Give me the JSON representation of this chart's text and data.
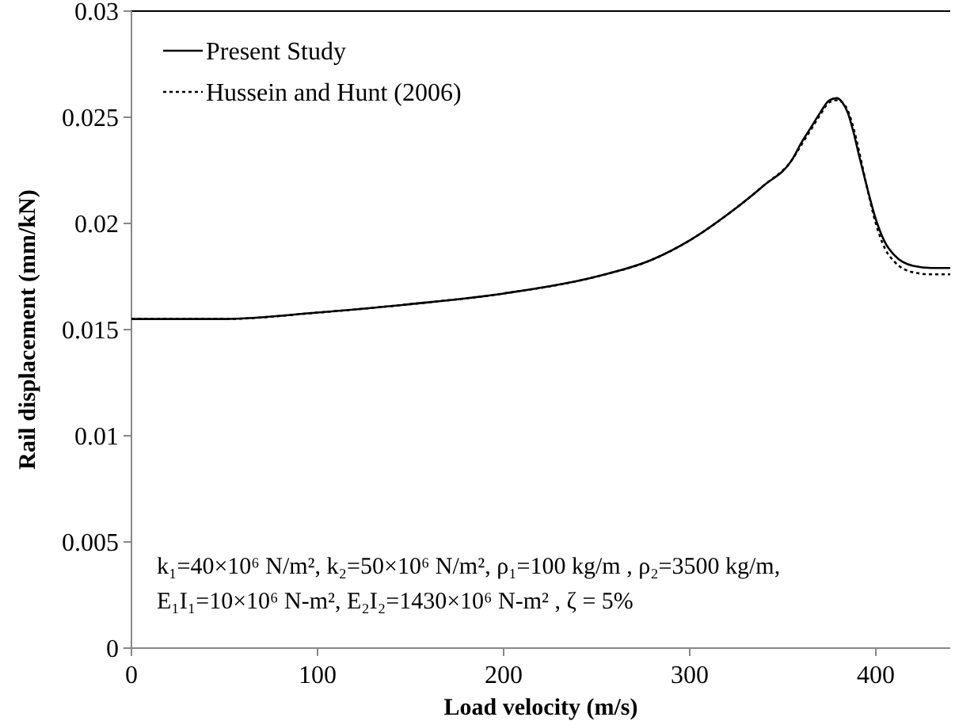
{
  "chart_data": {
    "type": "line",
    "xlabel": "Load velocity (m/s)",
    "ylabel": "Rail displacement (mm/kN)",
    "xlim": [
      0,
      440
    ],
    "ylim": [
      0,
      0.03
    ],
    "xticks": [
      0,
      100,
      200,
      300,
      400
    ],
    "yticks": [
      0,
      0.005,
      0.01,
      0.015,
      0.02,
      0.025,
      0.03
    ],
    "legend": "top left",
    "grid": false,
    "annotations": [
      "k₁=40×10⁶ N/m², k₂=50×10⁶ N/m², ρ₁=100 kg/m , ρ₂=3500 kg/m,",
      "E₁I₁=10×10⁶ N-m², E₂I₂=1430×10⁶ N-m² , ζ = 5%"
    ],
    "series": [
      {
        "name": "Present Study",
        "color": "#000000",
        "line_style": "solid",
        "x": [
          0,
          50,
          100,
          150,
          200,
          250,
          280,
          300,
          320,
          340,
          355,
          360,
          365,
          370,
          375,
          379,
          382,
          385,
          388,
          391,
          395,
          400,
          405,
          410,
          420,
          430,
          440
        ],
        "values": [
          0.0155,
          0.0155,
          0.0158,
          0.0162,
          0.0167,
          0.0175,
          0.0183,
          0.0192,
          0.0204,
          0.0218,
          0.023,
          0.0238,
          0.0245,
          0.0252,
          0.0258,
          0.0259,
          0.0257,
          0.0252,
          0.0243,
          0.0232,
          0.0218,
          0.0202,
          0.0191,
          0.0185,
          0.018,
          0.0179,
          0.0179
        ]
      },
      {
        "name": "Hussein and Hunt (2006)",
        "color": "#000000",
        "line_style": "dotted",
        "x": [
          0,
          50,
          100,
          150,
          200,
          250,
          280,
          300,
          320,
          340,
          355,
          360,
          365,
          370,
          375,
          379,
          382,
          385,
          388,
          391,
          395,
          400,
          405,
          410,
          420,
          430,
          440
        ],
        "values": [
          0.0155,
          0.0155,
          0.0158,
          0.0162,
          0.0167,
          0.0175,
          0.0183,
          0.0192,
          0.0204,
          0.0218,
          0.023,
          0.0237,
          0.0244,
          0.0251,
          0.0257,
          0.0258,
          0.0257,
          0.0253,
          0.0245,
          0.0234,
          0.0218,
          0.02,
          0.0188,
          0.0182,
          0.0177,
          0.0176,
          0.0176
        ]
      }
    ]
  }
}
